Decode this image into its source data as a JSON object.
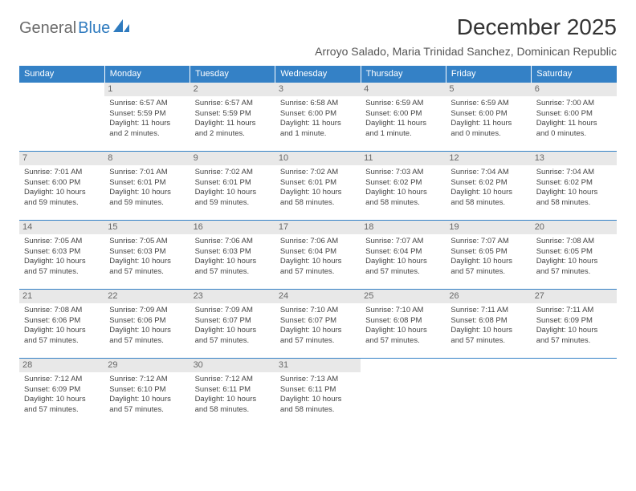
{
  "logo": {
    "word1": "General",
    "word2": "Blue",
    "icon_color": "#2f7bbf"
  },
  "title": "December 2025",
  "location": "Arroyo Salado, Maria Trinidad Sanchez, Dominican Republic",
  "colors": {
    "header_bg": "#3481c6",
    "header_text": "#ffffff",
    "daynum_bg": "#e8e8e8",
    "border": "#3481c6"
  },
  "weekdays": [
    "Sunday",
    "Monday",
    "Tuesday",
    "Wednesday",
    "Thursday",
    "Friday",
    "Saturday"
  ],
  "weeks": [
    [
      {
        "n": "",
        "sunrise": "",
        "sunset": "",
        "daylight": ""
      },
      {
        "n": "1",
        "sunrise": "Sunrise: 6:57 AM",
        "sunset": "Sunset: 5:59 PM",
        "daylight": "Daylight: 11 hours and 2 minutes."
      },
      {
        "n": "2",
        "sunrise": "Sunrise: 6:57 AM",
        "sunset": "Sunset: 5:59 PM",
        "daylight": "Daylight: 11 hours and 2 minutes."
      },
      {
        "n": "3",
        "sunrise": "Sunrise: 6:58 AM",
        "sunset": "Sunset: 6:00 PM",
        "daylight": "Daylight: 11 hours and 1 minute."
      },
      {
        "n": "4",
        "sunrise": "Sunrise: 6:59 AM",
        "sunset": "Sunset: 6:00 PM",
        "daylight": "Daylight: 11 hours and 1 minute."
      },
      {
        "n": "5",
        "sunrise": "Sunrise: 6:59 AM",
        "sunset": "Sunset: 6:00 PM",
        "daylight": "Daylight: 11 hours and 0 minutes."
      },
      {
        "n": "6",
        "sunrise": "Sunrise: 7:00 AM",
        "sunset": "Sunset: 6:00 PM",
        "daylight": "Daylight: 11 hours and 0 minutes."
      }
    ],
    [
      {
        "n": "7",
        "sunrise": "Sunrise: 7:01 AM",
        "sunset": "Sunset: 6:00 PM",
        "daylight": "Daylight: 10 hours and 59 minutes."
      },
      {
        "n": "8",
        "sunrise": "Sunrise: 7:01 AM",
        "sunset": "Sunset: 6:01 PM",
        "daylight": "Daylight: 10 hours and 59 minutes."
      },
      {
        "n": "9",
        "sunrise": "Sunrise: 7:02 AM",
        "sunset": "Sunset: 6:01 PM",
        "daylight": "Daylight: 10 hours and 59 minutes."
      },
      {
        "n": "10",
        "sunrise": "Sunrise: 7:02 AM",
        "sunset": "Sunset: 6:01 PM",
        "daylight": "Daylight: 10 hours and 58 minutes."
      },
      {
        "n": "11",
        "sunrise": "Sunrise: 7:03 AM",
        "sunset": "Sunset: 6:02 PM",
        "daylight": "Daylight: 10 hours and 58 minutes."
      },
      {
        "n": "12",
        "sunrise": "Sunrise: 7:04 AM",
        "sunset": "Sunset: 6:02 PM",
        "daylight": "Daylight: 10 hours and 58 minutes."
      },
      {
        "n": "13",
        "sunrise": "Sunrise: 7:04 AM",
        "sunset": "Sunset: 6:02 PM",
        "daylight": "Daylight: 10 hours and 58 minutes."
      }
    ],
    [
      {
        "n": "14",
        "sunrise": "Sunrise: 7:05 AM",
        "sunset": "Sunset: 6:03 PM",
        "daylight": "Daylight: 10 hours and 57 minutes."
      },
      {
        "n": "15",
        "sunrise": "Sunrise: 7:05 AM",
        "sunset": "Sunset: 6:03 PM",
        "daylight": "Daylight: 10 hours and 57 minutes."
      },
      {
        "n": "16",
        "sunrise": "Sunrise: 7:06 AM",
        "sunset": "Sunset: 6:03 PM",
        "daylight": "Daylight: 10 hours and 57 minutes."
      },
      {
        "n": "17",
        "sunrise": "Sunrise: 7:06 AM",
        "sunset": "Sunset: 6:04 PM",
        "daylight": "Daylight: 10 hours and 57 minutes."
      },
      {
        "n": "18",
        "sunrise": "Sunrise: 7:07 AM",
        "sunset": "Sunset: 6:04 PM",
        "daylight": "Daylight: 10 hours and 57 minutes."
      },
      {
        "n": "19",
        "sunrise": "Sunrise: 7:07 AM",
        "sunset": "Sunset: 6:05 PM",
        "daylight": "Daylight: 10 hours and 57 minutes."
      },
      {
        "n": "20",
        "sunrise": "Sunrise: 7:08 AM",
        "sunset": "Sunset: 6:05 PM",
        "daylight": "Daylight: 10 hours and 57 minutes."
      }
    ],
    [
      {
        "n": "21",
        "sunrise": "Sunrise: 7:08 AM",
        "sunset": "Sunset: 6:06 PM",
        "daylight": "Daylight: 10 hours and 57 minutes."
      },
      {
        "n": "22",
        "sunrise": "Sunrise: 7:09 AM",
        "sunset": "Sunset: 6:06 PM",
        "daylight": "Daylight: 10 hours and 57 minutes."
      },
      {
        "n": "23",
        "sunrise": "Sunrise: 7:09 AM",
        "sunset": "Sunset: 6:07 PM",
        "daylight": "Daylight: 10 hours and 57 minutes."
      },
      {
        "n": "24",
        "sunrise": "Sunrise: 7:10 AM",
        "sunset": "Sunset: 6:07 PM",
        "daylight": "Daylight: 10 hours and 57 minutes."
      },
      {
        "n": "25",
        "sunrise": "Sunrise: 7:10 AM",
        "sunset": "Sunset: 6:08 PM",
        "daylight": "Daylight: 10 hours and 57 minutes."
      },
      {
        "n": "26",
        "sunrise": "Sunrise: 7:11 AM",
        "sunset": "Sunset: 6:08 PM",
        "daylight": "Daylight: 10 hours and 57 minutes."
      },
      {
        "n": "27",
        "sunrise": "Sunrise: 7:11 AM",
        "sunset": "Sunset: 6:09 PM",
        "daylight": "Daylight: 10 hours and 57 minutes."
      }
    ],
    [
      {
        "n": "28",
        "sunrise": "Sunrise: 7:12 AM",
        "sunset": "Sunset: 6:09 PM",
        "daylight": "Daylight: 10 hours and 57 minutes."
      },
      {
        "n": "29",
        "sunrise": "Sunrise: 7:12 AM",
        "sunset": "Sunset: 6:10 PM",
        "daylight": "Daylight: 10 hours and 57 minutes."
      },
      {
        "n": "30",
        "sunrise": "Sunrise: 7:12 AM",
        "sunset": "Sunset: 6:11 PM",
        "daylight": "Daylight: 10 hours and 58 minutes."
      },
      {
        "n": "31",
        "sunrise": "Sunrise: 7:13 AM",
        "sunset": "Sunset: 6:11 PM",
        "daylight": "Daylight: 10 hours and 58 minutes."
      },
      {
        "n": "",
        "sunrise": "",
        "sunset": "",
        "daylight": ""
      },
      {
        "n": "",
        "sunrise": "",
        "sunset": "",
        "daylight": ""
      },
      {
        "n": "",
        "sunrise": "",
        "sunset": "",
        "daylight": ""
      }
    ]
  ]
}
